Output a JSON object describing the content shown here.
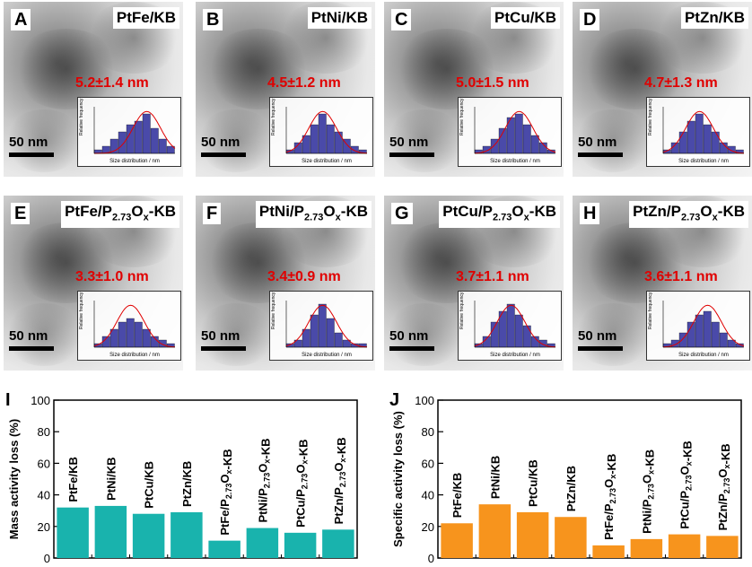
{
  "tem_panels": [
    {
      "letter": "A",
      "name": "PtFe/KB",
      "size_label": "5.2±1.4 nm",
      "scale": "50 nm"
    },
    {
      "letter": "B",
      "name": "PtNi/KB",
      "size_label": "4.5±1.2 nm",
      "scale": "50 nm"
    },
    {
      "letter": "C",
      "name": "PtCu/KB",
      "size_label": "5.0±1.5 nm",
      "scale": "50 nm"
    },
    {
      "letter": "D",
      "name": "PtZn/KB",
      "size_label": "4.7±1.3 nm",
      "scale": "50 nm"
    },
    {
      "letter": "E",
      "name": "PtFe/P2.73Ox-KB",
      "size_label": "3.3±1.0 nm",
      "scale": "50 nm"
    },
    {
      "letter": "F",
      "name": "PtNi/P2.73Ox-KB",
      "size_label": "3.4±0.9 nm",
      "scale": "50 nm"
    },
    {
      "letter": "G",
      "name": "PtCu/P2.73Ox-KB",
      "size_label": "3.7±1.1 nm",
      "scale": "50 nm"
    },
    {
      "letter": "H",
      "name": "PtZn/P2.73Ox-KB",
      "size_label": "3.6±1.1 nm",
      "scale": "50 nm"
    }
  ],
  "hist_labels": {
    "x": "Size distribution / nm",
    "y": "Relative frequency (%)"
  },
  "colors": {
    "hist_bar": "#2a2a9a",
    "fit_curve": "#e00000",
    "size_text": "#e00000",
    "chart_I": "#19b3ad",
    "chart_J": "#f7941d"
  },
  "chart_data": [
    {
      "type": "bar",
      "panel": "I",
      "ylabel": "Mass activity loss (%)",
      "ylim": [
        0,
        100
      ],
      "yticks": [
        0,
        20,
        40,
        60,
        80,
        100
      ],
      "categories": [
        "PtFe/KB",
        "PtNi/KB",
        "PtCu/KB",
        "PtZn/KB",
        "PtFe/P2.73Ox-KB",
        "PtNi/P2.73Ox-KB",
        "PtCu/P2.73Ox-KB",
        "PtZn/P2.73Ox-KB"
      ],
      "values": [
        32,
        33,
        28,
        29,
        11,
        19,
        16,
        18
      ]
    },
    {
      "type": "bar",
      "panel": "J",
      "ylabel": "Specific activity loss (%)",
      "ylim": [
        0,
        100
      ],
      "yticks": [
        0,
        20,
        40,
        60,
        80,
        100
      ],
      "categories": [
        "PtFe/KB",
        "PtNi/KB",
        "PtCu/KB",
        "PtZn/KB",
        "PtFe/P2.73Ox-KB",
        "PtNi/P2.73Ox-KB",
        "PtCu/P2.73Ox-KB",
        "PtZn/P2.73Ox-KB"
      ],
      "values": [
        22,
        34,
        29,
        26,
        8,
        12,
        15,
        14
      ]
    }
  ]
}
